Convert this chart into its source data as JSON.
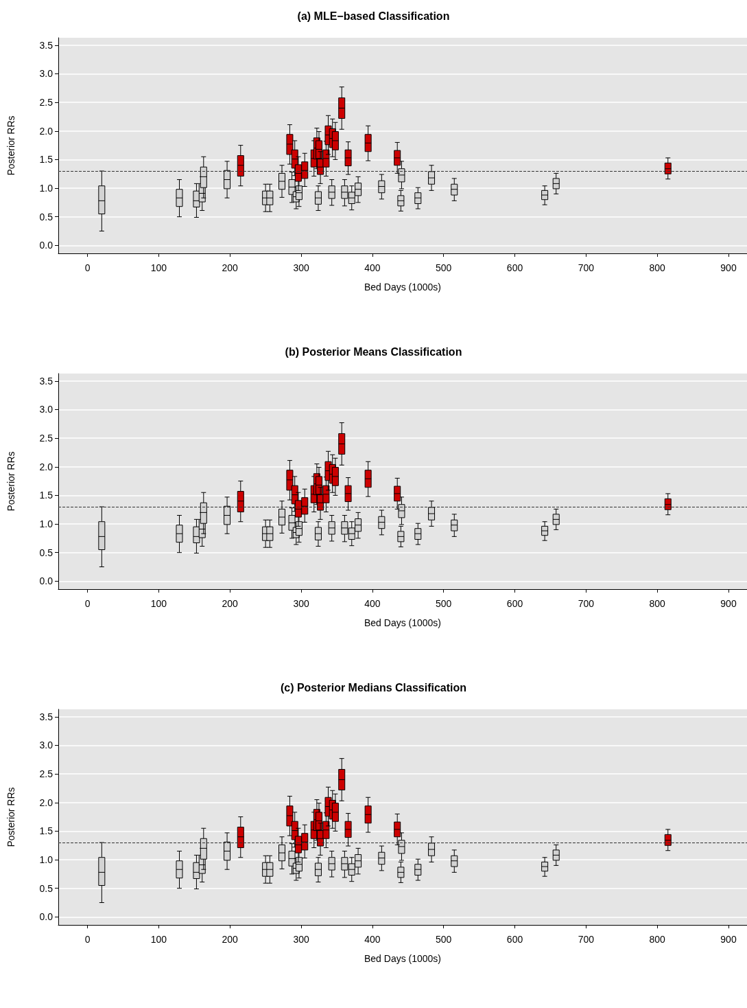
{
  "chart_data": [
    {
      "type": "box",
      "title": "(a) MLE−based Classification",
      "xlabel": "Bed Days (1000s)",
      "ylabel": "Posterior RRs",
      "xlim": [
        -41,
        926
      ],
      "xticks": [
        0,
        100,
        200,
        300,
        400,
        500,
        600,
        700,
        800,
        900
      ],
      "ylim": [
        -0.14,
        3.63
      ],
      "yticks": [
        {
          "value": 0,
          "label": "0.0"
        },
        0.5,
        {
          "value": 1,
          "label": "1.0"
        },
        1.5,
        {
          "value": 2,
          "label": "2.0"
        },
        2.5,
        {
          "value": 3,
          "label": "3.0"
        },
        3.5
      ],
      "grid": "y",
      "ref_lines": [
        {
          "axis": "y",
          "value": 1.3,
          "line_style": "dashed",
          "color": "#333333"
        }
      ],
      "series": [
        {
          "color": "#d3d3d3",
          "x": [
            20,
            129,
            153,
            161,
            163,
            196,
            250,
            256,
            273,
            287,
            293,
            297,
            324,
            343,
            361,
            371,
            380,
            413,
            440,
            441,
            464,
            483,
            515,
            642,
            658
          ],
          "boxes": [
            {
              "low": 0.25,
              "q1": 0.55,
              "median": 0.78,
              "q3": 1.04,
              "high": 1.3
            },
            {
              "low": 0.5,
              "q1": 0.68,
              "median": 0.83,
              "q3": 0.98,
              "high": 1.15
            },
            {
              "low": 0.49,
              "q1": 0.67,
              "median": 0.78,
              "q3": 0.95,
              "high": 1.08
            },
            {
              "low": 0.61,
              "q1": 0.76,
              "median": 0.91,
              "q3": 1.08,
              "high": 1.2
            },
            {
              "low": 0.83,
              "q1": 1.01,
              "median": 1.2,
              "q3": 1.37,
              "high": 1.55
            },
            {
              "low": 0.83,
              "q1": 0.99,
              "median": 1.15,
              "q3": 1.31,
              "high": 1.47
            },
            {
              "low": 0.59,
              "q1": 0.71,
              "median": 0.83,
              "q3": 0.95,
              "high": 1.07
            },
            {
              "low": 0.59,
              "q1": 0.71,
              "median": 0.83,
              "q3": 0.95,
              "high": 1.07
            },
            {
              "low": 0.84,
              "q1": 0.98,
              "median": 1.12,
              "q3": 1.26,
              "high": 1.4
            },
            {
              "low": 0.75,
              "q1": 0.89,
              "median": 1.02,
              "q3": 1.15,
              "high": 1.28
            },
            {
              "low": 0.64,
              "q1": 0.76,
              "median": 0.85,
              "q3": 0.94,
              "high": 1.02
            },
            {
              "low": 0.68,
              "q1": 0.8,
              "median": 0.92,
              "q3": 1.04,
              "high": 1.16
            },
            {
              "low": 0.61,
              "q1": 0.72,
              "median": 0.83,
              "q3": 0.94,
              "high": 1.04
            },
            {
              "low": 0.7,
              "q1": 0.82,
              "median": 0.93,
              "q3": 1.04,
              "high": 1.15
            },
            {
              "low": 0.69,
              "q1": 0.82,
              "median": 0.93,
              "q3": 1.04,
              "high": 1.15
            },
            {
              "low": 0.62,
              "q1": 0.73,
              "median": 0.83,
              "q3": 0.93,
              "high": 1.04
            },
            {
              "low": 0.75,
              "q1": 0.87,
              "median": 0.98,
              "q3": 1.09,
              "high": 1.2
            },
            {
              "low": 0.81,
              "q1": 0.92,
              "median": 1.03,
              "q3": 1.13,
              "high": 1.24
            },
            {
              "low": 0.6,
              "q1": 0.69,
              "median": 0.78,
              "q3": 0.87,
              "high": 0.96
            },
            {
              "low": 0.99,
              "q1": 1.11,
              "median": 1.23,
              "q3": 1.34,
              "high": 1.47
            },
            {
              "low": 0.64,
              "q1": 0.73,
              "median": 0.83,
              "q3": 0.92,
              "high": 1.01
            },
            {
              "low": 0.96,
              "q1": 1.07,
              "median": 1.18,
              "q3": 1.29,
              "high": 1.4
            },
            {
              "low": 0.78,
              "q1": 0.88,
              "median": 0.98,
              "q3": 1.07,
              "high": 1.17
            },
            {
              "low": 0.71,
              "q1": 0.8,
              "median": 0.88,
              "q3": 0.96,
              "high": 1.04
            },
            {
              "low": 0.9,
              "q1": 0.99,
              "median": 1.08,
              "q3": 1.17,
              "high": 1.26
            }
          ]
        },
        {
          "color": "#cc0000",
          "x": [
            215,
            284,
            291,
            296,
            305,
            318,
            322,
            325,
            327,
            335,
            338,
            344,
            348,
            357,
            366,
            394,
            435,
            815
          ],
          "boxes": [
            {
              "low": 1.04,
              "q1": 1.21,
              "median": 1.4,
              "q3": 1.57,
              "high": 1.75
            },
            {
              "low": 1.42,
              "q1": 1.59,
              "median": 1.77,
              "q3": 1.94,
              "high": 2.11
            },
            {
              "low": 1.22,
              "q1": 1.35,
              "median": 1.51,
              "q3": 1.67,
              "high": 1.83
            },
            {
              "low": 0.96,
              "q1": 1.12,
              "median": 1.26,
              "q3": 1.41,
              "high": 1.55
            },
            {
              "low": 1.03,
              "q1": 1.17,
              "median": 1.31,
              "q3": 1.46,
              "high": 1.61
            },
            {
              "low": 1.21,
              "q1": 1.37,
              "median": 1.52,
              "q3": 1.67,
              "high": 1.83
            },
            {
              "low": 1.34,
              "q1": 1.51,
              "median": 1.7,
              "q3": 1.88,
              "high": 2.05
            },
            {
              "low": 1.35,
              "q1": 1.52,
              "median": 1.68,
              "q3": 1.83,
              "high": 1.99
            },
            {
              "low": 1.08,
              "q1": 1.24,
              "median": 1.37,
              "q3": 1.51,
              "high": 1.64
            },
            {
              "low": 1.21,
              "q1": 1.37,
              "median": 1.52,
              "q3": 1.67,
              "high": 1.82
            },
            {
              "low": 1.59,
              "q1": 1.76,
              "median": 1.93,
              "q3": 2.09,
              "high": 2.27
            },
            {
              "low": 1.55,
              "q1": 1.71,
              "median": 1.87,
              "q3": 2.04,
              "high": 2.21
            },
            {
              "low": 1.5,
              "q1": 1.67,
              "median": 1.83,
              "q3": 1.99,
              "high": 2.15
            },
            {
              "low": 2.03,
              "q1": 2.22,
              "median": 2.4,
              "q3": 2.58,
              "high": 2.77
            },
            {
              "low": 1.24,
              "q1": 1.39,
              "median": 1.53,
              "q3": 1.67,
              "high": 1.81
            },
            {
              "low": 1.48,
              "q1": 1.64,
              "median": 1.79,
              "q3": 1.94,
              "high": 2.09
            },
            {
              "low": 1.26,
              "q1": 1.4,
              "median": 1.53,
              "q3": 1.66,
              "high": 1.8
            },
            {
              "low": 1.16,
              "q1": 1.25,
              "median": 1.34,
              "q3": 1.44,
              "high": 1.53
            }
          ]
        }
      ]
    },
    {
      "type": "box",
      "title": "(b) Posterior Means Classification",
      "xlabel": "Bed Days (1000s)",
      "ylabel": "Posterior RRs",
      "xlim": [
        -41,
        926
      ],
      "xticks": [
        0,
        100,
        200,
        300,
        400,
        500,
        600,
        700,
        800,
        900
      ],
      "ylim": [
        -0.14,
        3.63
      ],
      "yticks": [
        {
          "value": 0,
          "label": "0.0"
        },
        0.5,
        {
          "value": 1,
          "label": "1.0"
        },
        1.5,
        {
          "value": 2,
          "label": "2.0"
        },
        2.5,
        {
          "value": 3,
          "label": "3.0"
        },
        3.5
      ],
      "grid": "y",
      "ref_lines": [
        {
          "axis": "y",
          "value": 1.3,
          "line_style": "dashed",
          "color": "#333333"
        }
      ],
      "series": [
        {
          "color": "#d3d3d3",
          "x": [
            20,
            129,
            153,
            161,
            163,
            196,
            250,
            256,
            273,
            287,
            293,
            297,
            324,
            343,
            361,
            371,
            380,
            413,
            440,
            441,
            464,
            483,
            515,
            642,
            658
          ],
          "boxes": [
            {
              "low": 0.25,
              "q1": 0.55,
              "median": 0.78,
              "q3": 1.04,
              "high": 1.3
            },
            {
              "low": 0.5,
              "q1": 0.68,
              "median": 0.83,
              "q3": 0.98,
              "high": 1.15
            },
            {
              "low": 0.49,
              "q1": 0.67,
              "median": 0.78,
              "q3": 0.95,
              "high": 1.08
            },
            {
              "low": 0.61,
              "q1": 0.76,
              "median": 0.91,
              "q3": 1.08,
              "high": 1.2
            },
            {
              "low": 0.83,
              "q1": 1.01,
              "median": 1.2,
              "q3": 1.37,
              "high": 1.55
            },
            {
              "low": 0.83,
              "q1": 0.99,
              "median": 1.15,
              "q3": 1.31,
              "high": 1.47
            },
            {
              "low": 0.59,
              "q1": 0.71,
              "median": 0.83,
              "q3": 0.95,
              "high": 1.07
            },
            {
              "low": 0.59,
              "q1": 0.71,
              "median": 0.83,
              "q3": 0.95,
              "high": 1.07
            },
            {
              "low": 0.84,
              "q1": 0.98,
              "median": 1.12,
              "q3": 1.26,
              "high": 1.4
            },
            {
              "low": 0.75,
              "q1": 0.89,
              "median": 1.02,
              "q3": 1.15,
              "high": 1.28
            },
            {
              "low": 0.64,
              "q1": 0.76,
              "median": 0.85,
              "q3": 0.94,
              "high": 1.02
            },
            {
              "low": 0.68,
              "q1": 0.8,
              "median": 0.92,
              "q3": 1.04,
              "high": 1.16
            },
            {
              "low": 0.61,
              "q1": 0.72,
              "median": 0.83,
              "q3": 0.94,
              "high": 1.04
            },
            {
              "low": 0.7,
              "q1": 0.82,
              "median": 0.93,
              "q3": 1.04,
              "high": 1.15
            },
            {
              "low": 0.69,
              "q1": 0.82,
              "median": 0.93,
              "q3": 1.04,
              "high": 1.15
            },
            {
              "low": 0.62,
              "q1": 0.73,
              "median": 0.83,
              "q3": 0.93,
              "high": 1.04
            },
            {
              "low": 0.75,
              "q1": 0.87,
              "median": 0.98,
              "q3": 1.09,
              "high": 1.2
            },
            {
              "low": 0.81,
              "q1": 0.92,
              "median": 1.03,
              "q3": 1.13,
              "high": 1.24
            },
            {
              "low": 0.6,
              "q1": 0.69,
              "median": 0.78,
              "q3": 0.87,
              "high": 0.96
            },
            {
              "low": 0.99,
              "q1": 1.11,
              "median": 1.23,
              "q3": 1.34,
              "high": 1.47
            },
            {
              "low": 0.64,
              "q1": 0.73,
              "median": 0.83,
              "q3": 0.92,
              "high": 1.01
            },
            {
              "low": 0.96,
              "q1": 1.07,
              "median": 1.18,
              "q3": 1.29,
              "high": 1.4
            },
            {
              "low": 0.78,
              "q1": 0.88,
              "median": 0.98,
              "q3": 1.07,
              "high": 1.17
            },
            {
              "low": 0.71,
              "q1": 0.8,
              "median": 0.88,
              "q3": 0.96,
              "high": 1.04
            },
            {
              "low": 0.9,
              "q1": 0.99,
              "median": 1.08,
              "q3": 1.17,
              "high": 1.26
            }
          ]
        },
        {
          "color": "#cc0000",
          "x": [
            215,
            284,
            291,
            296,
            305,
            318,
            322,
            325,
            327,
            335,
            338,
            344,
            348,
            357,
            366,
            394,
            435,
            815
          ],
          "boxes": [
            {
              "low": 1.04,
              "q1": 1.21,
              "median": 1.4,
              "q3": 1.57,
              "high": 1.75
            },
            {
              "low": 1.42,
              "q1": 1.59,
              "median": 1.77,
              "q3": 1.94,
              "high": 2.11
            },
            {
              "low": 1.22,
              "q1": 1.35,
              "median": 1.51,
              "q3": 1.67,
              "high": 1.83
            },
            {
              "low": 0.96,
              "q1": 1.12,
              "median": 1.26,
              "q3": 1.41,
              "high": 1.55
            },
            {
              "low": 1.03,
              "q1": 1.17,
              "median": 1.31,
              "q3": 1.46,
              "high": 1.61
            },
            {
              "low": 1.21,
              "q1": 1.37,
              "median": 1.52,
              "q3": 1.67,
              "high": 1.83
            },
            {
              "low": 1.34,
              "q1": 1.51,
              "median": 1.7,
              "q3": 1.88,
              "high": 2.05
            },
            {
              "low": 1.35,
              "q1": 1.52,
              "median": 1.68,
              "q3": 1.83,
              "high": 1.99
            },
            {
              "low": 1.08,
              "q1": 1.24,
              "median": 1.37,
              "q3": 1.51,
              "high": 1.64
            },
            {
              "low": 1.21,
              "q1": 1.37,
              "median": 1.52,
              "q3": 1.67,
              "high": 1.82
            },
            {
              "low": 1.59,
              "q1": 1.76,
              "median": 1.93,
              "q3": 2.09,
              "high": 2.27
            },
            {
              "low": 1.55,
              "q1": 1.71,
              "median": 1.87,
              "q3": 2.04,
              "high": 2.21
            },
            {
              "low": 1.5,
              "q1": 1.67,
              "median": 1.83,
              "q3": 1.99,
              "high": 2.15
            },
            {
              "low": 2.03,
              "q1": 2.22,
              "median": 2.4,
              "q3": 2.58,
              "high": 2.77
            },
            {
              "low": 1.24,
              "q1": 1.39,
              "median": 1.53,
              "q3": 1.67,
              "high": 1.81
            },
            {
              "low": 1.48,
              "q1": 1.64,
              "median": 1.79,
              "q3": 1.94,
              "high": 2.09
            },
            {
              "low": 1.26,
              "q1": 1.4,
              "median": 1.53,
              "q3": 1.66,
              "high": 1.8
            },
            {
              "low": 1.16,
              "q1": 1.25,
              "median": 1.34,
              "q3": 1.44,
              "high": 1.53
            }
          ]
        }
      ]
    },
    {
      "type": "box",
      "title": "(c) Posterior Medians Classification",
      "xlabel": "Bed Days (1000s)",
      "ylabel": "Posterior RRs",
      "xlim": [
        -41,
        926
      ],
      "xticks": [
        0,
        100,
        200,
        300,
        400,
        500,
        600,
        700,
        800,
        900
      ],
      "ylim": [
        -0.14,
        3.63
      ],
      "yticks": [
        {
          "value": 0,
          "label": "0.0"
        },
        0.5,
        {
          "value": 1,
          "label": "1.0"
        },
        1.5,
        {
          "value": 2,
          "label": "2.0"
        },
        2.5,
        {
          "value": 3,
          "label": "3.0"
        },
        3.5
      ],
      "grid": "y",
      "ref_lines": [
        {
          "axis": "y",
          "value": 1.3,
          "line_style": "dashed",
          "color": "#333333"
        }
      ],
      "series": [
        {
          "color": "#d3d3d3",
          "x": [
            20,
            129,
            153,
            161,
            163,
            196,
            250,
            256,
            273,
            287,
            293,
            297,
            324,
            343,
            361,
            371,
            380,
            413,
            440,
            441,
            464,
            483,
            515,
            642,
            658
          ],
          "boxes": [
            {
              "low": 0.25,
              "q1": 0.55,
              "median": 0.78,
              "q3": 1.04,
              "high": 1.3
            },
            {
              "low": 0.5,
              "q1": 0.68,
              "median": 0.83,
              "q3": 0.98,
              "high": 1.15
            },
            {
              "low": 0.49,
              "q1": 0.67,
              "median": 0.78,
              "q3": 0.95,
              "high": 1.08
            },
            {
              "low": 0.61,
              "q1": 0.76,
              "median": 0.91,
              "q3": 1.08,
              "high": 1.2
            },
            {
              "low": 0.83,
              "q1": 1.01,
              "median": 1.2,
              "q3": 1.37,
              "high": 1.55
            },
            {
              "low": 0.83,
              "q1": 0.99,
              "median": 1.15,
              "q3": 1.31,
              "high": 1.47
            },
            {
              "low": 0.59,
              "q1": 0.71,
              "median": 0.83,
              "q3": 0.95,
              "high": 1.07
            },
            {
              "low": 0.59,
              "q1": 0.71,
              "median": 0.83,
              "q3": 0.95,
              "high": 1.07
            },
            {
              "low": 0.84,
              "q1": 0.98,
              "median": 1.12,
              "q3": 1.26,
              "high": 1.4
            },
            {
              "low": 0.75,
              "q1": 0.89,
              "median": 1.02,
              "q3": 1.15,
              "high": 1.28
            },
            {
              "low": 0.64,
              "q1": 0.76,
              "median": 0.85,
              "q3": 0.94,
              "high": 1.02
            },
            {
              "low": 0.68,
              "q1": 0.8,
              "median": 0.92,
              "q3": 1.04,
              "high": 1.16
            },
            {
              "low": 0.61,
              "q1": 0.72,
              "median": 0.83,
              "q3": 0.94,
              "high": 1.04
            },
            {
              "low": 0.7,
              "q1": 0.82,
              "median": 0.93,
              "q3": 1.04,
              "high": 1.15
            },
            {
              "low": 0.69,
              "q1": 0.82,
              "median": 0.93,
              "q3": 1.04,
              "high": 1.15
            },
            {
              "low": 0.62,
              "q1": 0.73,
              "median": 0.83,
              "q3": 0.93,
              "high": 1.04
            },
            {
              "low": 0.75,
              "q1": 0.87,
              "median": 0.98,
              "q3": 1.09,
              "high": 1.2
            },
            {
              "low": 0.81,
              "q1": 0.92,
              "median": 1.03,
              "q3": 1.13,
              "high": 1.24
            },
            {
              "low": 0.6,
              "q1": 0.69,
              "median": 0.78,
              "q3": 0.87,
              "high": 0.96
            },
            {
              "low": 0.99,
              "q1": 1.11,
              "median": 1.23,
              "q3": 1.34,
              "high": 1.47
            },
            {
              "low": 0.64,
              "q1": 0.73,
              "median": 0.83,
              "q3": 0.92,
              "high": 1.01
            },
            {
              "low": 0.96,
              "q1": 1.07,
              "median": 1.18,
              "q3": 1.29,
              "high": 1.4
            },
            {
              "low": 0.78,
              "q1": 0.88,
              "median": 0.98,
              "q3": 1.07,
              "high": 1.17
            },
            {
              "low": 0.71,
              "q1": 0.8,
              "median": 0.88,
              "q3": 0.96,
              "high": 1.04
            },
            {
              "low": 0.9,
              "q1": 0.99,
              "median": 1.08,
              "q3": 1.17,
              "high": 1.26
            }
          ]
        },
        {
          "color": "#cc0000",
          "x": [
            215,
            284,
            291,
            296,
            305,
            318,
            322,
            325,
            327,
            335,
            338,
            344,
            348,
            357,
            366,
            394,
            435,
            815
          ],
          "boxes": [
            {
              "low": 1.04,
              "q1": 1.21,
              "median": 1.4,
              "q3": 1.57,
              "high": 1.75
            },
            {
              "low": 1.42,
              "q1": 1.59,
              "median": 1.77,
              "q3": 1.94,
              "high": 2.11
            },
            {
              "low": 1.22,
              "q1": 1.35,
              "median": 1.51,
              "q3": 1.67,
              "high": 1.83
            },
            {
              "low": 0.96,
              "q1": 1.12,
              "median": 1.26,
              "q3": 1.41,
              "high": 1.55
            },
            {
              "low": 1.03,
              "q1": 1.17,
              "median": 1.31,
              "q3": 1.46,
              "high": 1.61
            },
            {
              "low": 1.21,
              "q1": 1.37,
              "median": 1.52,
              "q3": 1.67,
              "high": 1.83
            },
            {
              "low": 1.34,
              "q1": 1.51,
              "median": 1.7,
              "q3": 1.88,
              "high": 2.05
            },
            {
              "low": 1.35,
              "q1": 1.52,
              "median": 1.68,
              "q3": 1.83,
              "high": 1.99
            },
            {
              "low": 1.08,
              "q1": 1.24,
              "median": 1.37,
              "q3": 1.51,
              "high": 1.64
            },
            {
              "low": 1.21,
              "q1": 1.37,
              "median": 1.52,
              "q3": 1.67,
              "high": 1.82
            },
            {
              "low": 1.59,
              "q1": 1.76,
              "median": 1.93,
              "q3": 2.09,
              "high": 2.27
            },
            {
              "low": 1.55,
              "q1": 1.71,
              "median": 1.87,
              "q3": 2.04,
              "high": 2.21
            },
            {
              "low": 1.5,
              "q1": 1.67,
              "median": 1.83,
              "q3": 1.99,
              "high": 2.15
            },
            {
              "low": 2.03,
              "q1": 2.22,
              "median": 2.4,
              "q3": 2.58,
              "high": 2.77
            },
            {
              "low": 1.24,
              "q1": 1.39,
              "median": 1.53,
              "q3": 1.67,
              "high": 1.81
            },
            {
              "low": 1.48,
              "q1": 1.64,
              "median": 1.79,
              "q3": 1.94,
              "high": 2.09
            },
            {
              "low": 1.26,
              "q1": 1.4,
              "median": 1.53,
              "q3": 1.66,
              "high": 1.8
            },
            {
              "low": 1.16,
              "q1": 1.25,
              "median": 1.34,
              "q3": 1.44,
              "high": 1.53
            }
          ]
        }
      ]
    }
  ]
}
